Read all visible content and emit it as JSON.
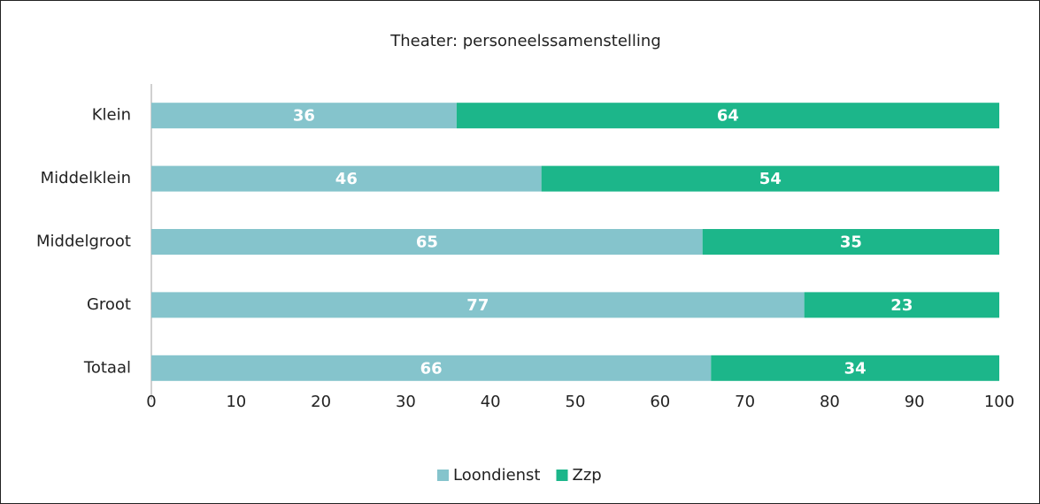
{
  "chart_data": {
    "type": "bar",
    "orientation": "horizontal",
    "stacked": true,
    "data_labels": true,
    "grid": false,
    "title": "Theater: personeelssamenstelling",
    "categories": [
      "Klein",
      "Middelklein",
      "Middelgroot",
      "Groot",
      "Totaal"
    ],
    "series": [
      {
        "name": "Loondienst",
        "color": "#85c4cc",
        "values": [
          36,
          46,
          65,
          77,
          66
        ]
      },
      {
        "name": "Zzp",
        "color": "#1cb68a",
        "values": [
          64,
          54,
          35,
          23,
          34
        ]
      }
    ],
    "xlim": [
      0,
      100
    ],
    "xticks": [
      0,
      10,
      20,
      30,
      40,
      50,
      60,
      70,
      80,
      90,
      100
    ],
    "legend": "bottom"
  }
}
